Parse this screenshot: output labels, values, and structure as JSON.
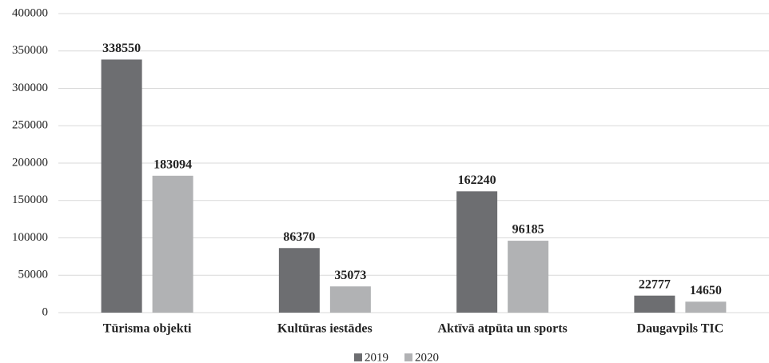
{
  "chart_data": {
    "type": "bar",
    "categories": [
      "Tūrisma objekti",
      "Kultūras iestādes",
      "Aktīvā atpūta un sports",
      "Daugavpils TIC"
    ],
    "series": [
      {
        "name": "2019",
        "color": "#6d6e71",
        "values": [
          338550,
          86370,
          162240,
          22777
        ]
      },
      {
        "name": "2020",
        "color": "#b1b2b4",
        "values": [
          183094,
          35073,
          96185,
          14650
        ]
      }
    ],
    "ylim": [
      0,
      400000
    ],
    "yticks": [
      0,
      50000,
      100000,
      150000,
      200000,
      250000,
      300000,
      350000,
      400000
    ],
    "grid": true,
    "legend": "bottom"
  }
}
